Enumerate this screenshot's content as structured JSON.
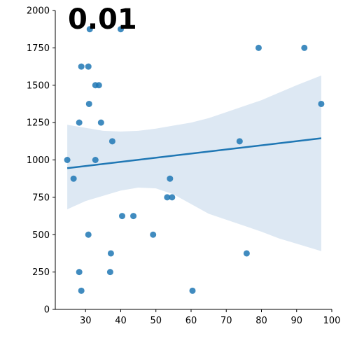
{
  "chart_data": {
    "type": "scatter",
    "title": "0.01",
    "xlabel": "",
    "ylabel": "",
    "xlim": [
      21.4,
      100
    ],
    "ylim": [
      0,
      2000
    ],
    "x_ticks": [
      "30",
      "40",
      "50",
      "60",
      "70",
      "80",
      "90",
      "100"
    ],
    "y_ticks": [
      "0",
      "250",
      "500",
      "750",
      "1000",
      "1250",
      "1500",
      "1750",
      "2000"
    ],
    "grid": false,
    "colors": {
      "points": "#1f77b4",
      "line": "#1f77b4",
      "band": "#dde8f3"
    },
    "points": [
      {
        "x": 24.8,
        "y": 1000
      },
      {
        "x": 26.6,
        "y": 875
      },
      {
        "x": 28.2,
        "y": 1250
      },
      {
        "x": 28.2,
        "y": 250
      },
      {
        "x": 28.8,
        "y": 1625
      },
      {
        "x": 28.8,
        "y": 125
      },
      {
        "x": 30.8,
        "y": 1625
      },
      {
        "x": 30.8,
        "y": 500
      },
      {
        "x": 31.2,
        "y": 1875
      },
      {
        "x": 31.0,
        "y": 1375
      },
      {
        "x": 32.8,
        "y": 1500
      },
      {
        "x": 32.8,
        "y": 1000
      },
      {
        "x": 33.8,
        "y": 1500
      },
      {
        "x": 34.4,
        "y": 1250
      },
      {
        "x": 37.0,
        "y": 250
      },
      {
        "x": 37.2,
        "y": 375
      },
      {
        "x": 37.6,
        "y": 1125
      },
      {
        "x": 40.0,
        "y": 1875
      },
      {
        "x": 40.4,
        "y": 625
      },
      {
        "x": 43.6,
        "y": 625
      },
      {
        "x": 49.2,
        "y": 500
      },
      {
        "x": 53.2,
        "y": 750
      },
      {
        "x": 54.0,
        "y": 875
      },
      {
        "x": 54.6,
        "y": 750
      },
      {
        "x": 60.4,
        "y": 125
      },
      {
        "x": 73.8,
        "y": 1125
      },
      {
        "x": 75.8,
        "y": 375
      },
      {
        "x": 79.2,
        "y": 1750
      },
      {
        "x": 92.2,
        "y": 1750
      },
      {
        "x": 97.0,
        "y": 1375
      }
    ],
    "regression": {
      "x": [
        24.8,
        97.0
      ],
      "y": [
        945,
        1145
      ]
    },
    "confidence_band": {
      "x": [
        24.8,
        30,
        35,
        40,
        45,
        50,
        55,
        60,
        65,
        70,
        75,
        80,
        85,
        90,
        97
      ],
      "upper": [
        1235,
        1215,
        1195,
        1190,
        1195,
        1210,
        1230,
        1250,
        1280,
        1320,
        1360,
        1400,
        1450,
        1500,
        1565
      ],
      "lower": [
        670,
        725,
        760,
        795,
        815,
        810,
        770,
        705,
        640,
        600,
        560,
        520,
        475,
        440,
        390
      ]
    }
  }
}
